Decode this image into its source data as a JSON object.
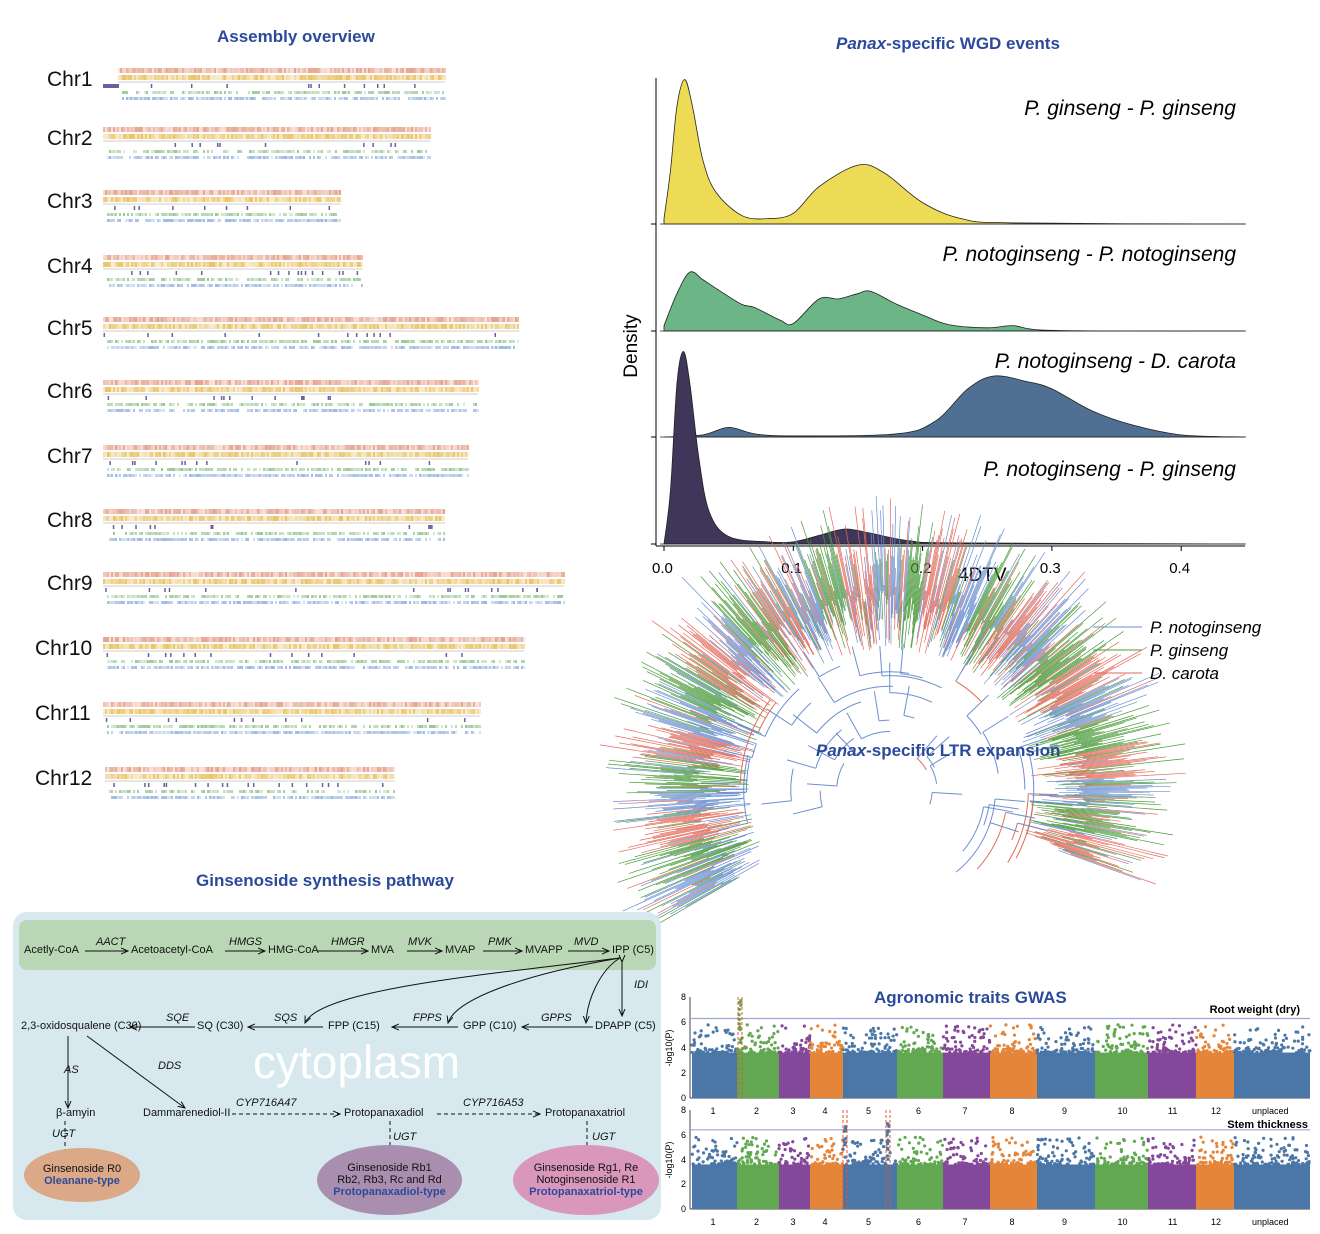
{
  "assembly": {
    "title": "Assembly overview",
    "chromosomes": [
      "Chr1",
      "Chr2",
      "Chr3",
      "Chr4",
      "Chr5",
      "Chr6",
      "Chr7",
      "Chr8",
      "Chr9",
      "Chr10",
      "Chr11",
      "Chr12"
    ],
    "track_colors": [
      "#e3927a",
      "#e8b84a",
      "#6a5fa0",
      "#8cc28a",
      "#8fb0dc"
    ]
  },
  "chart_data": [
    {
      "type": "area",
      "title_italic": "Panax",
      "title_rest": "-specific WGD events",
      "xlabel": "4DTV",
      "ylabel": "Density",
      "xlim": [
        0,
        0.45
      ],
      "xticks": [
        "0.0",
        "0.1",
        "0.2",
        "0.3",
        "0.4"
      ],
      "series": [
        {
          "name": "P. ginseng - P. ginseng",
          "color": "#eedb55",
          "points": [
            [
              0,
              0.05
            ],
            [
              0.005,
              0.5
            ],
            [
              0.01,
              1.1
            ],
            [
              0.016,
              1.35
            ],
            [
              0.022,
              1.1
            ],
            [
              0.03,
              0.6
            ],
            [
              0.04,
              0.3
            ],
            [
              0.06,
              0.08
            ],
            [
              0.08,
              0.05
            ],
            [
              0.1,
              0.1
            ],
            [
              0.12,
              0.35
            ],
            [
              0.15,
              0.55
            ],
            [
              0.17,
              0.48
            ],
            [
              0.2,
              0.2
            ],
            [
              0.23,
              0.05
            ],
            [
              0.27,
              0.01
            ],
            [
              0.45,
              0
            ]
          ]
        },
        {
          "name": "P. notoginseng - P. notoginseng",
          "color": "#6cb586",
          "points": [
            [
              0,
              0.05
            ],
            [
              0.01,
              0.35
            ],
            [
              0.02,
              0.55
            ],
            [
              0.03,
              0.48
            ],
            [
              0.04,
              0.4
            ],
            [
              0.06,
              0.25
            ],
            [
              0.07,
              0.22
            ],
            [
              0.09,
              0.1
            ],
            [
              0.1,
              0.07
            ],
            [
              0.12,
              0.3
            ],
            [
              0.135,
              0.3
            ],
            [
              0.15,
              0.35
            ],
            [
              0.16,
              0.37
            ],
            [
              0.18,
              0.25
            ],
            [
              0.2,
              0.15
            ],
            [
              0.22,
              0.06
            ],
            [
              0.25,
              0.03
            ],
            [
              0.27,
              0.05
            ],
            [
              0.29,
              0.01
            ],
            [
              0.35,
              0
            ],
            [
              0.45,
              0
            ]
          ]
        },
        {
          "name": "P. notoginseng - D. carota",
          "color": "#4f7092",
          "points": [
            [
              0,
              0
            ],
            [
              0.03,
              0.02
            ],
            [
              0.05,
              0.09
            ],
            [
              0.07,
              0.03
            ],
            [
              0.1,
              0.01
            ],
            [
              0.18,
              0.03
            ],
            [
              0.21,
              0.15
            ],
            [
              0.235,
              0.45
            ],
            [
              0.255,
              0.57
            ],
            [
              0.28,
              0.52
            ],
            [
              0.3,
              0.45
            ],
            [
              0.33,
              0.25
            ],
            [
              0.36,
              0.12
            ],
            [
              0.4,
              0.02
            ],
            [
              0.45,
              0
            ]
          ]
        },
        {
          "name": "P. notoginseng - P. ginseng",
          "color": "#3f3659",
          "points": [
            [
              0,
              0
            ],
            [
              0.005,
              0.5
            ],
            [
              0.01,
              1.5
            ],
            [
              0.015,
              1.8
            ],
            [
              0.02,
              1.5
            ],
            [
              0.027,
              0.8
            ],
            [
              0.035,
              0.3
            ],
            [
              0.05,
              0.07
            ],
            [
              0.08,
              0.02
            ],
            [
              0.1,
              0.02
            ],
            [
              0.12,
              0.08
            ],
            [
              0.14,
              0.14
            ],
            [
              0.16,
              0.1
            ],
            [
              0.19,
              0.03
            ],
            [
              0.23,
              0.01
            ],
            [
              0.45,
              0
            ]
          ]
        }
      ]
    },
    {
      "type": "scatter",
      "title": "Agronomic traits GWAS",
      "ylabel": "-log10(P)",
      "ylim": [
        0,
        8
      ],
      "yticks": [
        "0",
        "2",
        "4",
        "6",
        "8"
      ],
      "categories": [
        "1",
        "2",
        "3",
        "4",
        "5",
        "6",
        "7",
        "8",
        "9",
        "10",
        "11",
        "12",
        "unplaced"
      ],
      "colors": [
        "#4a76a8",
        "#62a852",
        "#84489a",
        "#e4853a"
      ],
      "panels": [
        {
          "trait": "Root weight (dry)",
          "threshold": 6.3,
          "peaks": [
            {
              "chr": "1",
              "value": 7.8
            }
          ]
        },
        {
          "trait": "Stem thickness",
          "threshold": 6.4,
          "peaks": [
            {
              "chr": "4",
              "value": 6.8
            },
            {
              "chr": "5",
              "value": 7.3
            }
          ]
        }
      ]
    }
  ],
  "tree": {
    "title_italic": "Panax",
    "title_rest": "-specific LTR expansion",
    "legend": [
      {
        "name": "P. notoginseng",
        "color": "#6b8fd0"
      },
      {
        "name": "P. ginseng",
        "color": "#4a9a3a"
      },
      {
        "name": "D. carota",
        "color": "#e36a5a"
      }
    ]
  },
  "pathway": {
    "title": "Ginsenoside synthesis pathway",
    "watermark": "cytoplasm",
    "nodes": {
      "acetyl": "Acetly-CoA",
      "acetoacetyl": "Acetoacetyl-CoA",
      "hmgcoa": "HMG-CoA",
      "mva": "MVA",
      "mvap": "MVAP",
      "mvapp": "MVAPP",
      "ipp": "IPP (C5)",
      "dpapp": "DPAPP (C5)",
      "gpp": "GPP (C10)",
      "fpp": "FPP (C15)",
      "sq": "SQ (C30)",
      "oxido": "2,3-oxidosqualene (C30)",
      "bamyrin": "β-amyin",
      "dammar": "Dammarenediol-II",
      "ppd": "Protopanaxadiol",
      "ppt": "Protopanaxatriol"
    },
    "enzymes": {
      "aact": "AACT",
      "hmgs": "HMGS",
      "hmgr": "HMGR",
      "mvk": "MVK",
      "pmk": "PMK",
      "mvd": "MVD",
      "idi": "IDI",
      "gpps": "GPPS",
      "fpps": "FPPS",
      "sqs": "SQS",
      "sqe": "SQE",
      "as": "AS",
      "dds": "DDS",
      "cyp47": "CYP716A47",
      "cyp53": "CYP716A53",
      "ugt": "UGT"
    },
    "products": [
      {
        "line1": "Ginsenoside R0",
        "line2": "",
        "type": "Oleanane-type",
        "color": "#dba888"
      },
      {
        "line1": "Ginsenoside Rb1",
        "line2": "Rb2,  Rb3, Rc and Rd",
        "type": "Protopanaxadiol-type",
        "color": "#a98eaf"
      },
      {
        "line1": "Ginsenoside Rg1, Re",
        "line2": "Notoginsenoside R1",
        "type": "Protopanaxatriol-type",
        "color": "#d897bb"
      }
    ]
  }
}
